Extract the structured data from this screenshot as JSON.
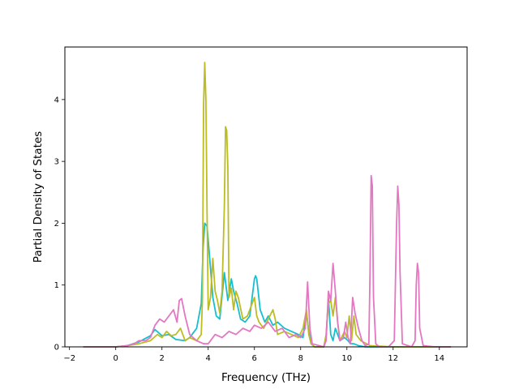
{
  "chart_data": {
    "type": "line",
    "title": "",
    "xlabel": "Frequency (THz)",
    "ylabel": "Partial Density of States",
    "xlim": [
      -2.2,
      15.2
    ],
    "ylim": [
      0,
      4.85
    ],
    "x_ticks": [
      -2,
      0,
      2,
      4,
      6,
      8,
      10,
      12,
      14
    ],
    "y_ticks": [
      0,
      1,
      2,
      3,
      4
    ],
    "grid": false,
    "legend": "none",
    "series": [
      {
        "color": "#17becf",
        "x": [
          -1.4,
          0.0,
          0.5,
          1.0,
          1.5,
          1.7,
          2.0,
          2.3,
          2.6,
          3.0,
          3.2,
          3.5,
          3.7,
          3.78,
          3.85,
          3.95,
          4.05,
          4.2,
          4.35,
          4.5,
          4.7,
          4.85,
          5.0,
          5.1,
          5.25,
          5.4,
          5.6,
          5.8,
          6.0,
          6.05,
          6.1,
          6.25,
          6.45,
          6.6,
          6.8,
          7.0,
          7.3,
          7.6,
          7.9,
          8.1,
          8.25,
          8.35,
          8.45,
          8.6,
          9.0,
          9.1,
          9.2,
          9.3,
          9.4,
          9.5,
          9.6,
          9.7,
          9.9,
          10.05,
          10.15,
          10.3,
          10.5,
          10.8,
          11.5,
          12.5,
          13.5,
          14.0,
          14.5
        ],
        "y": [
          0,
          0,
          0.02,
          0.08,
          0.18,
          0.28,
          0.18,
          0.2,
          0.12,
          0.1,
          0.15,
          0.3,
          0.7,
          1.6,
          2.0,
          1.95,
          1.5,
          0.8,
          0.5,
          0.45,
          1.2,
          0.75,
          1.1,
          0.9,
          0.7,
          0.45,
          0.4,
          0.5,
          1.1,
          1.15,
          1.1,
          0.6,
          0.4,
          0.5,
          0.35,
          0.4,
          0.3,
          0.25,
          0.2,
          0.15,
          0.55,
          0.25,
          0.05,
          0,
          0,
          0.15,
          0.8,
          0.2,
          0.1,
          0.3,
          0.2,
          0.1,
          0.15,
          0.1,
          0.05,
          0.05,
          0.02,
          0,
          0,
          0,
          0,
          0,
          0
        ]
      },
      {
        "color": "#bcbd22",
        "x": [
          -1.4,
          0.0,
          0.5,
          1.0,
          1.5,
          1.8,
          2.0,
          2.2,
          2.4,
          2.6,
          2.8,
          3.0,
          3.2,
          3.5,
          3.7,
          3.75,
          3.8,
          3.85,
          3.9,
          3.95,
          4.0,
          4.1,
          4.2,
          4.3,
          4.4,
          4.5,
          4.6,
          4.7,
          4.75,
          4.8,
          4.85,
          4.9,
          5.0,
          5.1,
          5.2,
          5.3,
          5.5,
          5.7,
          5.9,
          6.0,
          6.1,
          6.2,
          6.4,
          6.6,
          6.8,
          6.9,
          7.0,
          7.3,
          7.6,
          7.9,
          8.1,
          8.25,
          8.35,
          8.45,
          8.6,
          9.0,
          9.1,
          9.2,
          9.3,
          9.4,
          9.5,
          9.6,
          9.7,
          9.9,
          10.0,
          10.1,
          10.2,
          10.3,
          10.4,
          10.6,
          11.0,
          12.0,
          13.0,
          14.0,
          14.5
        ],
        "y": [
          0,
          0,
          0.02,
          0.05,
          0.1,
          0.2,
          0.15,
          0.25,
          0.18,
          0.2,
          0.3,
          0.1,
          0.15,
          0.1,
          0.2,
          0.75,
          3.9,
          4.6,
          4.0,
          2.2,
          0.6,
          0.8,
          1.43,
          0.9,
          0.75,
          0.55,
          0.9,
          2.3,
          3.56,
          3.5,
          2.9,
          0.8,
          0.95,
          0.6,
          0.9,
          0.8,
          0.45,
          0.5,
          0.7,
          0.8,
          0.5,
          0.4,
          0.3,
          0.45,
          0.6,
          0.45,
          0.2,
          0.25,
          0.2,
          0.15,
          0.3,
          0.6,
          0.2,
          0.05,
          0,
          0,
          0.2,
          0.7,
          0.75,
          0.5,
          0.8,
          0.4,
          0.1,
          0.25,
          0.15,
          0.5,
          0.1,
          0.5,
          0.2,
          0.1,
          0.02,
          0,
          0,
          0,
          0
        ]
      },
      {
        "color": "#e377c2",
        "x": [
          -1.4,
          0.0,
          0.5,
          0.8,
          1.0,
          1.3,
          1.5,
          1.7,
          1.9,
          2.1,
          2.3,
          2.5,
          2.65,
          2.75,
          2.85,
          3.0,
          3.2,
          3.5,
          3.8,
          4.0,
          4.3,
          4.6,
          4.9,
          5.2,
          5.5,
          5.8,
          6.0,
          6.3,
          6.6,
          6.9,
          7.2,
          7.5,
          7.8,
          8.0,
          8.2,
          8.3,
          8.4,
          8.5,
          9.0,
          9.1,
          9.2,
          9.3,
          9.4,
          9.5,
          9.6,
          9.7,
          9.85,
          9.95,
          10.05,
          10.15,
          10.25,
          10.35,
          10.5,
          10.65,
          10.8,
          10.95,
          11.0,
          11.05,
          11.1,
          11.15,
          11.25,
          11.4,
          11.8,
          12.05,
          12.15,
          12.2,
          12.25,
          12.3,
          12.4,
          12.8,
          12.95,
          13.0,
          13.05,
          13.1,
          13.15,
          13.3,
          13.8,
          14.5
        ],
        "y": [
          0,
          0,
          0.02,
          0.05,
          0.1,
          0.1,
          0.15,
          0.35,
          0.45,
          0.4,
          0.5,
          0.6,
          0.4,
          0.75,
          0.78,
          0.5,
          0.2,
          0.1,
          0.05,
          0.05,
          0.2,
          0.15,
          0.25,
          0.2,
          0.3,
          0.25,
          0.35,
          0.3,
          0.4,
          0.25,
          0.3,
          0.15,
          0.2,
          0.15,
          0.3,
          1.05,
          0.3,
          0.05,
          0,
          0.1,
          0.9,
          0.75,
          1.35,
          0.9,
          0.4,
          0.1,
          0.15,
          0.4,
          0.15,
          0.05,
          0.8,
          0.55,
          0.3,
          0.1,
          0.02,
          0.05,
          1.2,
          2.77,
          2.6,
          0.8,
          0.05,
          0,
          0,
          0.1,
          2.0,
          2.6,
          2.3,
          1.2,
          0.05,
          0,
          0.1,
          1.0,
          1.35,
          1.2,
          0.3,
          0.02,
          0,
          0
        ]
      }
    ]
  }
}
